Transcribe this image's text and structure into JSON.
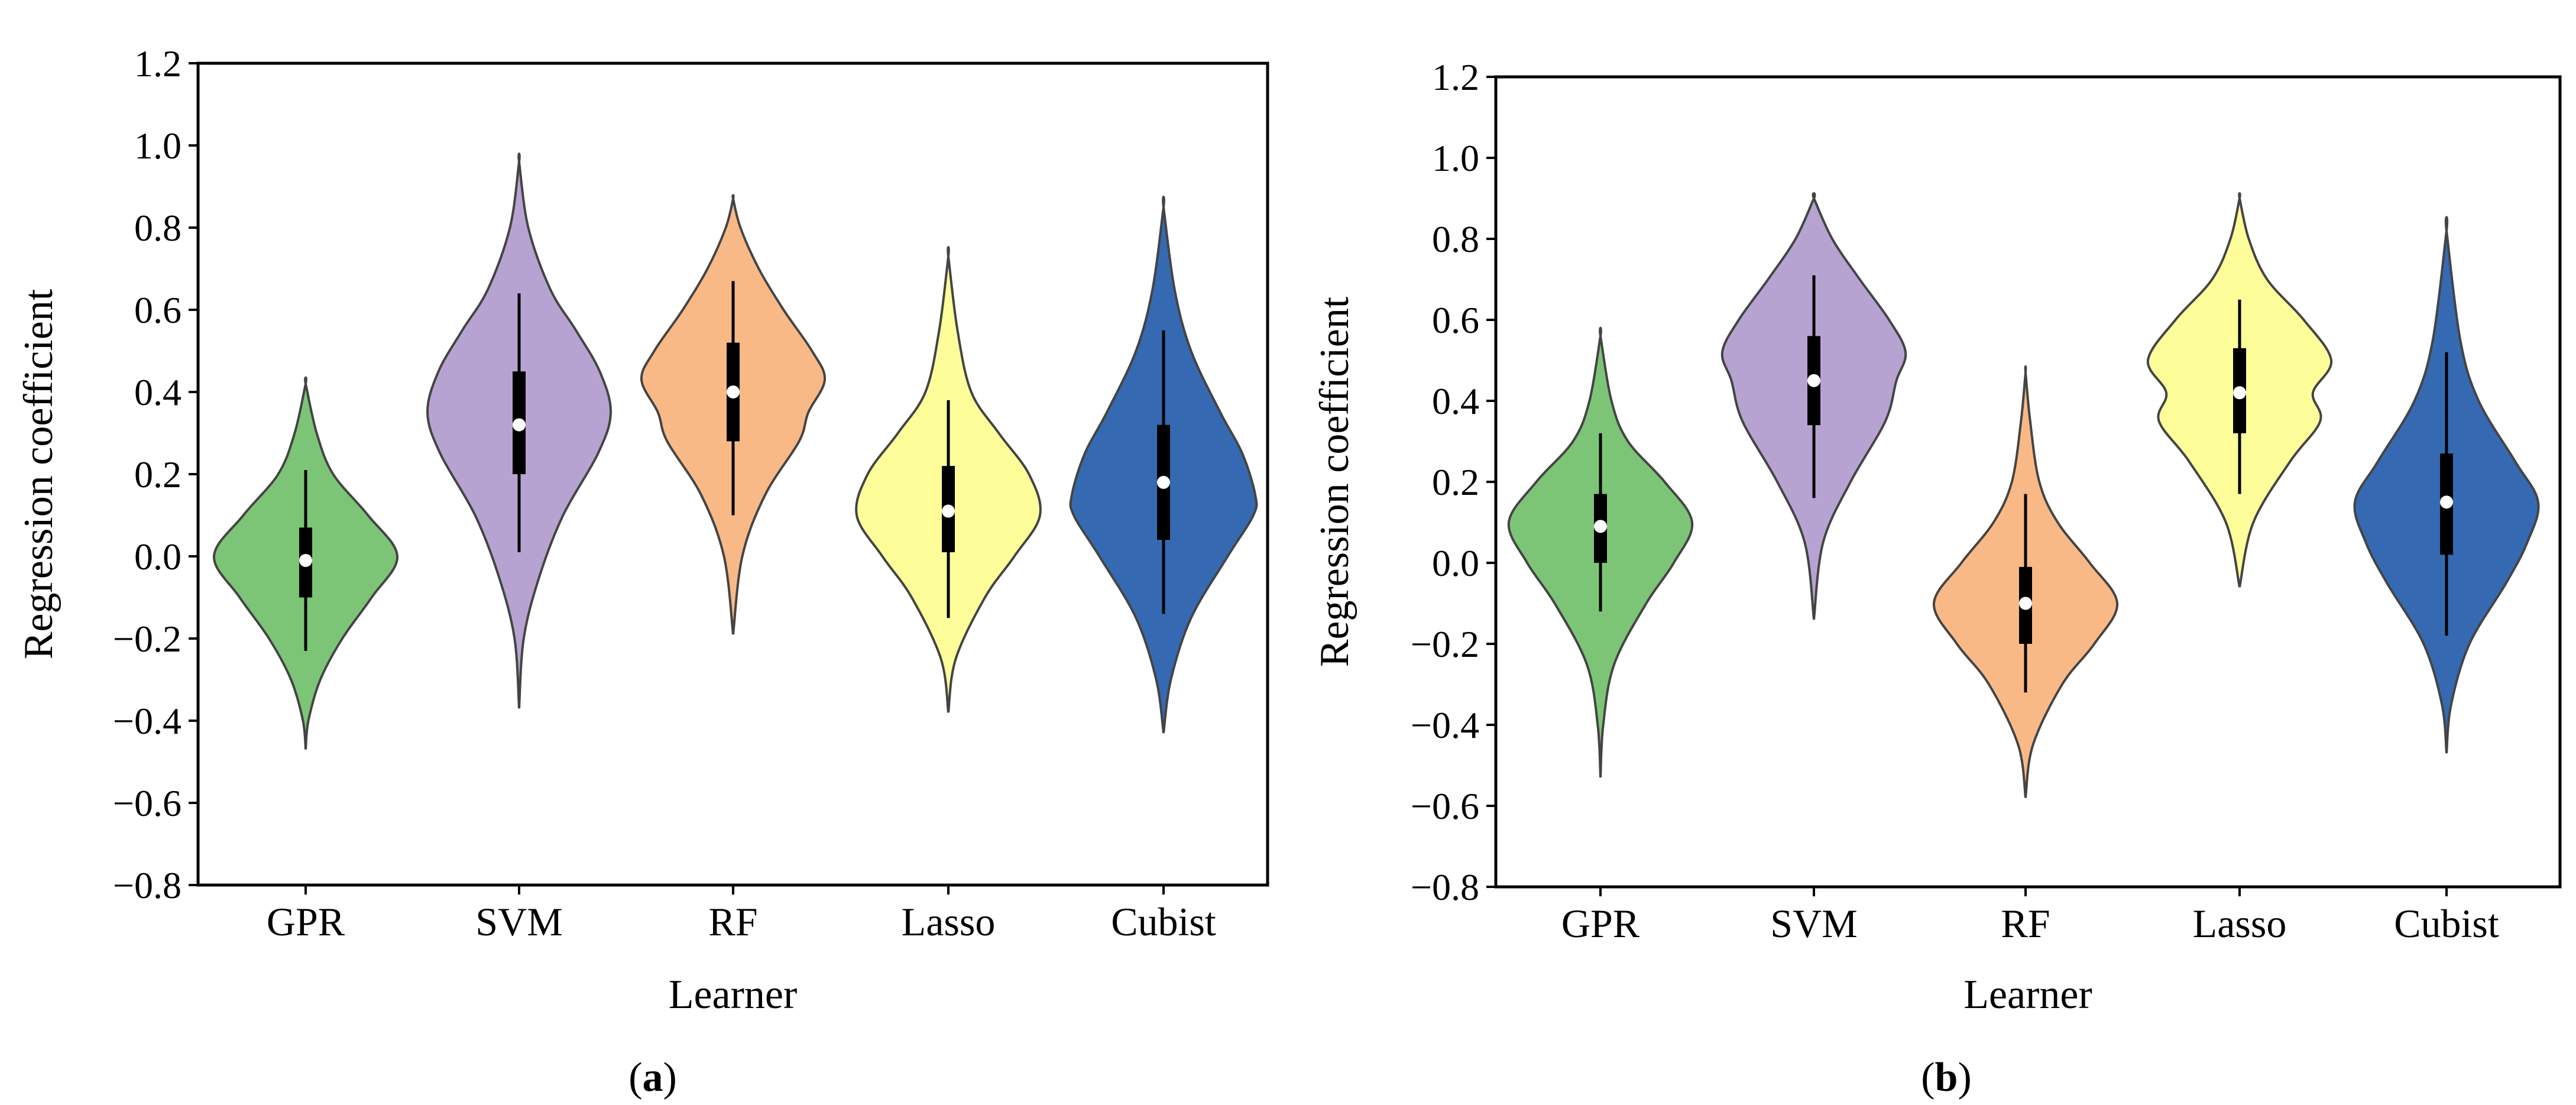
{
  "chart_data": [
    {
      "type": "violin",
      "panel_label": "(a)",
      "xlabel": "Learner",
      "ylabel": "Regression coefficient",
      "ylim": [
        -0.8,
        1.2
      ],
      "yticks": [
        -0.8,
        -0.6,
        -0.4,
        -0.2,
        0.0,
        0.2,
        0.4,
        0.6,
        0.8,
        1.0,
        1.2
      ],
      "ytick_labels": [
        "−0.8",
        "−0.6",
        "−0.4",
        "−0.2",
        "0.0",
        "0.2",
        "0.4",
        "0.6",
        "0.8",
        "1.0",
        "1.2"
      ],
      "grid": false,
      "categories": [
        "GPR",
        "SVM",
        "RF",
        "Lasso",
        "Cubist"
      ],
      "violins": [
        {
          "name": "GPR",
          "color": "#7CC576",
          "min": -0.47,
          "max": 0.42,
          "q1": -0.1,
          "median": -0.01,
          "q3": 0.07,
          "whisker_low": -0.23,
          "whisker_high": 0.21,
          "profile": [
            [
              -0.47,
              0.0
            ],
            [
              -0.4,
              0.03
            ],
            [
              -0.3,
              0.16
            ],
            [
              -0.2,
              0.4
            ],
            [
              -0.1,
              0.72
            ],
            [
              0.0,
              1.0
            ],
            [
              0.1,
              0.68
            ],
            [
              0.2,
              0.3
            ],
            [
              0.3,
              0.12
            ],
            [
              0.42,
              0.0
            ]
          ]
        },
        {
          "name": "SVM",
          "color": "#B7A3D1",
          "min": -0.37,
          "max": 0.96,
          "q1": 0.2,
          "median": 0.32,
          "q3": 0.45,
          "whisker_low": 0.01,
          "whisker_high": 0.64,
          "profile": [
            [
              -0.37,
              0.0
            ],
            [
              -0.2,
              0.05
            ],
            [
              -0.05,
              0.22
            ],
            [
              0.1,
              0.48
            ],
            [
              0.25,
              0.86
            ],
            [
              0.35,
              1.0
            ],
            [
              0.45,
              0.88
            ],
            [
              0.55,
              0.62
            ],
            [
              0.65,
              0.34
            ],
            [
              0.8,
              0.1
            ],
            [
              0.96,
              0.0
            ]
          ]
        },
        {
          "name": "RF",
          "color": "#F9B986",
          "min": -0.19,
          "max": 0.87,
          "q1": 0.28,
          "median": 0.4,
          "q3": 0.52,
          "whisker_low": 0.1,
          "whisker_high": 0.67,
          "profile": [
            [
              -0.19,
              0.0
            ],
            [
              0.0,
              0.1
            ],
            [
              0.15,
              0.35
            ],
            [
              0.28,
              0.72
            ],
            [
              0.35,
              0.82
            ],
            [
              0.43,
              1.0
            ],
            [
              0.5,
              0.86
            ],
            [
              0.6,
              0.55
            ],
            [
              0.7,
              0.28
            ],
            [
              0.8,
              0.08
            ],
            [
              0.87,
              0.0
            ]
          ]
        },
        {
          "name": "Lasso",
          "color": "#FDFD9A",
          "min": -0.38,
          "max": 0.73,
          "q1": 0.01,
          "median": 0.11,
          "q3": 0.22,
          "whisker_low": -0.15,
          "whisker_high": 0.38,
          "profile": [
            [
              -0.38,
              0.0
            ],
            [
              -0.25,
              0.08
            ],
            [
              -0.1,
              0.4
            ],
            [
              0.0,
              0.72
            ],
            [
              0.1,
              1.0
            ],
            [
              0.2,
              0.88
            ],
            [
              0.3,
              0.55
            ],
            [
              0.4,
              0.25
            ],
            [
              0.55,
              0.1
            ],
            [
              0.73,
              0.0
            ]
          ]
        },
        {
          "name": "Cubist",
          "color": "#356AB3",
          "min": -0.43,
          "max": 0.85,
          "q1": 0.04,
          "median": 0.18,
          "q3": 0.32,
          "whisker_low": -0.14,
          "whisker_high": 0.55,
          "profile": [
            [
              -0.43,
              0.0
            ],
            [
              -0.3,
              0.08
            ],
            [
              -0.15,
              0.3
            ],
            [
              0.0,
              0.7
            ],
            [
              0.1,
              0.98
            ],
            [
              0.15,
              1.0
            ],
            [
              0.25,
              0.86
            ],
            [
              0.35,
              0.62
            ],
            [
              0.5,
              0.3
            ],
            [
              0.65,
              0.12
            ],
            [
              0.85,
              0.0
            ]
          ]
        }
      ]
    },
    {
      "type": "violin",
      "panel_label": "(b)",
      "xlabel": "Learner",
      "ylabel": "Regression coefficient",
      "ylim": [
        -0.8,
        1.2
      ],
      "yticks": [
        -0.8,
        -0.6,
        -0.4,
        -0.2,
        0.0,
        0.2,
        0.4,
        0.6,
        0.8,
        1.0,
        1.2
      ],
      "ytick_labels": [
        "−0.8",
        "−0.6",
        "−0.4",
        "−0.2",
        "0.0",
        "0.2",
        "0.4",
        "0.6",
        "0.8",
        "1.0",
        "1.2"
      ],
      "grid": false,
      "categories": [
        "GPR",
        "SVM",
        "RF",
        "Lasso",
        "Cubist"
      ],
      "violins": [
        {
          "name": "GPR",
          "color": "#7CC576",
          "min": -0.53,
          "max": 0.56,
          "q1": 0.0,
          "median": 0.09,
          "q3": 0.17,
          "whisker_low": -0.12,
          "whisker_high": 0.32,
          "profile": [
            [
              -0.53,
              0.0
            ],
            [
              -0.4,
              0.03
            ],
            [
              -0.25,
              0.15
            ],
            [
              -0.1,
              0.5
            ],
            [
              0.0,
              0.8
            ],
            [
              0.1,
              1.0
            ],
            [
              0.2,
              0.7
            ],
            [
              0.3,
              0.3
            ],
            [
              0.4,
              0.12
            ],
            [
              0.56,
              0.0
            ]
          ]
        },
        {
          "name": "SVM",
          "color": "#B7A3D1",
          "min": -0.14,
          "max": 0.9,
          "q1": 0.34,
          "median": 0.45,
          "q3": 0.56,
          "whisker_low": 0.16,
          "whisker_high": 0.71,
          "profile": [
            [
              -0.14,
              0.0
            ],
            [
              0.05,
              0.1
            ],
            [
              0.2,
              0.4
            ],
            [
              0.35,
              0.78
            ],
            [
              0.45,
              0.9
            ],
            [
              0.52,
              1.0
            ],
            [
              0.6,
              0.82
            ],
            [
              0.7,
              0.5
            ],
            [
              0.8,
              0.2
            ],
            [
              0.9,
              0.0
            ]
          ]
        },
        {
          "name": "RF",
          "color": "#F9B986",
          "min": -0.58,
          "max": 0.47,
          "q1": -0.2,
          "median": -0.1,
          "q3": -0.01,
          "whisker_low": -0.32,
          "whisker_high": 0.17,
          "profile": [
            [
              -0.58,
              0.0
            ],
            [
              -0.45,
              0.08
            ],
            [
              -0.3,
              0.4
            ],
            [
              -0.2,
              0.75
            ],
            [
              -0.1,
              1.0
            ],
            [
              0.0,
              0.7
            ],
            [
              0.1,
              0.35
            ],
            [
              0.2,
              0.15
            ],
            [
              0.35,
              0.05
            ],
            [
              0.47,
              0.0
            ]
          ]
        },
        {
          "name": "Lasso",
          "color": "#FDFD9A",
          "min": -0.06,
          "max": 0.9,
          "q1": 0.32,
          "median": 0.42,
          "q3": 0.53,
          "whisker_low": 0.17,
          "whisker_high": 0.65,
          "profile": [
            [
              -0.06,
              0.0
            ],
            [
              0.1,
              0.15
            ],
            [
              0.25,
              0.55
            ],
            [
              0.35,
              0.88
            ],
            [
              0.42,
              0.8
            ],
            [
              0.5,
              1.0
            ],
            [
              0.6,
              0.7
            ],
            [
              0.7,
              0.3
            ],
            [
              0.8,
              0.1
            ],
            [
              0.9,
              0.0
            ]
          ]
        },
        {
          "name": "Cubist",
          "color": "#356AB3",
          "min": -0.47,
          "max": 0.82,
          "q1": 0.02,
          "median": 0.15,
          "q3": 0.27,
          "whisker_low": -0.18,
          "whisker_high": 0.52,
          "profile": [
            [
              -0.47,
              0.0
            ],
            [
              -0.35,
              0.05
            ],
            [
              -0.2,
              0.25
            ],
            [
              -0.05,
              0.65
            ],
            [
              0.05,
              0.88
            ],
            [
              0.15,
              1.0
            ],
            [
              0.25,
              0.75
            ],
            [
              0.4,
              0.35
            ],
            [
              0.55,
              0.15
            ],
            [
              0.82,
              0.0
            ]
          ]
        }
      ]
    }
  ]
}
